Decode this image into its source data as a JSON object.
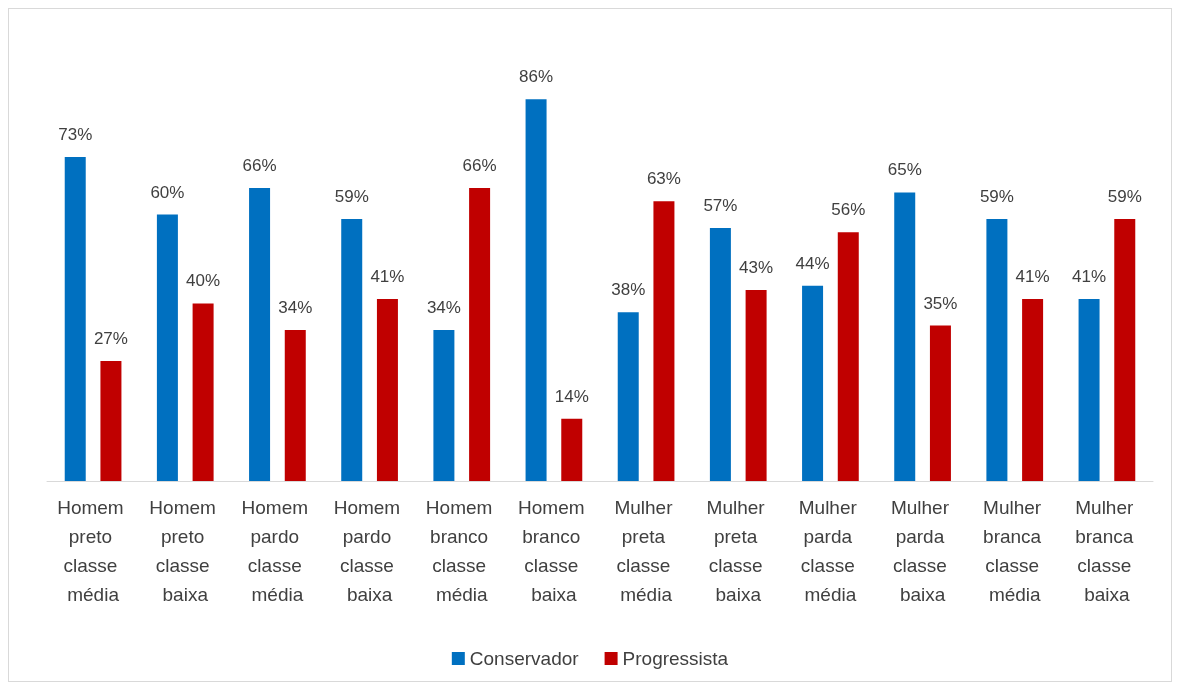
{
  "chart_data": {
    "type": "bar",
    "categories": [
      "Homem preto classe média",
      "Homem preto classe baixa",
      "Homem pardo classe média",
      "Homem pardo classe baixa",
      "Homem branco classe média",
      "Homem branco classe baixa",
      "Mulher preta classe média",
      "Mulher preta classe baixa",
      "Mulher parda classe média",
      "Mulher parda classe baixa",
      "Mulher branca classe média",
      "Mulher branca classe baixa"
    ],
    "series": [
      {
        "name": "Conservador",
        "color": "#0070c0",
        "values": [
          73,
          60,
          66,
          59,
          34,
          86,
          38,
          57,
          44,
          65,
          59,
          41
        ],
        "value_labels": [
          "73%",
          "60%",
          "66%",
          "59%",
          "34%",
          "86%",
          "38%",
          "57%",
          "44%",
          "65%",
          "59%",
          "41%"
        ]
      },
      {
        "name": "Progressista",
        "color": "#c00000",
        "values": [
          27,
          40,
          34,
          41,
          66,
          14,
          63,
          43,
          56,
          35,
          41,
          59
        ],
        "value_labels": [
          "27%",
          "40%",
          "34%",
          "41%",
          "66%",
          "14%",
          "63%",
          "43%",
          "56%",
          "35%",
          "41%",
          "59%"
        ]
      }
    ],
    "legend": "bottom"
  }
}
